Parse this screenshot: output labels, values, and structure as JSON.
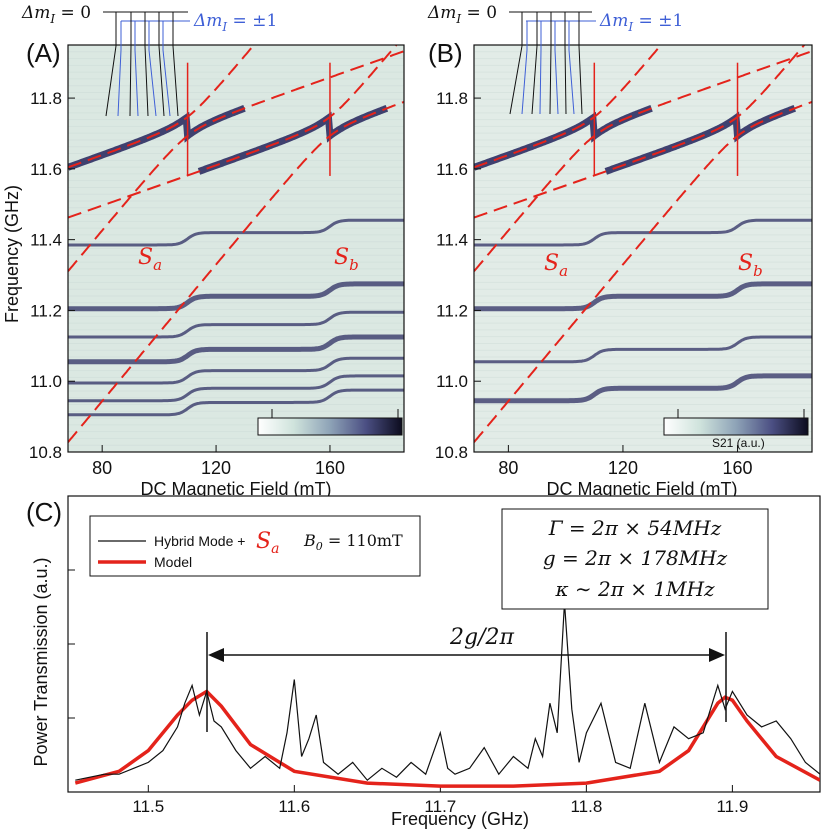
{
  "colors": {
    "red": "#e4231b",
    "blue": "#3e5fd6",
    "navy": "#2e2f63",
    "bg_teal": "#dbe8e2",
    "axis": "#111111"
  },
  "panels": {
    "A": {
      "label": "(A)",
      "xlabel": "DC Magnetic Field (mT)",
      "ylabel": "Frequency (GHz)",
      "xlim": [
        68,
        186
      ],
      "ylim": [
        10.8,
        11.95
      ],
      "xticks": [
        "80",
        "120",
        "160"
      ],
      "yticks": [
        "10.8",
        "11.0",
        "11.2",
        "11.4",
        "11.6",
        "11.8"
      ],
      "sa_label": "S",
      "sa_sub": "a",
      "sb_label": "S",
      "sb_sub": "b",
      "colorbar_label": "",
      "dm0_label": "Δm",
      "dm0_sub": "I",
      "dm0_val": " = 0",
      "dm1_label": "Δm",
      "dm1_sub": "I",
      "dm1_val": " = ±1"
    },
    "B": {
      "label": "(B)",
      "xlabel": "DC Magnetic Field (mT)",
      "xlim": [
        68,
        186
      ],
      "ylim": [
        10.8,
        11.95
      ],
      "xticks": [
        "80",
        "120",
        "160"
      ],
      "yticks": [
        "10.8",
        "11.0",
        "11.2",
        "11.4",
        "11.6",
        "11.8"
      ],
      "sa_label": "S",
      "sa_sub": "a",
      "sb_label": "S",
      "sb_sub": "b",
      "colorbar_label": "S21 (a.u.)",
      "dm0_label": "Δm",
      "dm0_sub": "I",
      "dm0_val": " = 0",
      "dm1_label": "Δm",
      "dm1_sub": "I",
      "dm1_val": " = ±1"
    },
    "C": {
      "label": "(C)",
      "xlabel": "Frequency (GHz)",
      "ylabel": "Power Transmission (a.u.)",
      "legend_data": "Hybrid Mode + ",
      "legend_sa": "S",
      "legend_sa_sub": "a",
      "legend_b0": "B",
      "legend_b0_sub": "0",
      "legend_b0_val": " = 110mT",
      "legend_model": "Model",
      "param_gamma": "Γ = 2π × 54MHz",
      "param_g": "g = 2π × 178MHz",
      "param_kappa": "κ ∼ 2π × 1MHz",
      "gap_label": "2g/2π",
      "xticks": [
        "11.5",
        "11.6",
        "11.7",
        "11.8",
        "11.9"
      ]
    }
  },
  "chart_data": [
    {
      "type": "heatmap",
      "title": "(A)",
      "xlabel": "DC Magnetic Field (mT)",
      "ylabel": "Frequency (GHz)",
      "xlim": [
        68,
        186
      ],
      "ylim": [
        10.8,
        11.95
      ],
      "hybrid_mode_f0": 11.72,
      "avoided_crossings_mT": [
        110,
        160
      ],
      "coupling_GHz": 0.178,
      "lines_GHz": [
        11.42,
        11.24,
        11.16,
        11.09,
        11.03,
        10.98,
        10.94
      ],
      "annotations": [
        "Sa",
        "Sb",
        "Δm_I = 0",
        "Δm_I = ±1"
      ]
    },
    {
      "type": "heatmap",
      "title": "(B)",
      "xlabel": "DC Magnetic Field (mT)",
      "ylabel": "Frequency (GHz)",
      "xlim": [
        68,
        186
      ],
      "ylim": [
        10.8,
        11.95
      ],
      "hybrid_mode_f0": 11.72,
      "avoided_crossings_mT": [
        110,
        160
      ],
      "coupling_GHz": 0.178,
      "lines_GHz": [
        11.42,
        11.24,
        11.09,
        10.98
      ],
      "annotations": [
        "Sa",
        "Sb",
        "S21 (a.u.)"
      ]
    },
    {
      "type": "line",
      "title": "(C)",
      "xlabel": "Frequency (GHz)",
      "ylabel": "Power Transmission (a.u.)",
      "xlim": [
        11.445,
        11.96
      ],
      "ylim": [
        0,
        1
      ],
      "series": [
        {
          "name": "Hybrid Mode + Sa  B0 = 110mT",
          "x": [
            11.45,
            11.46,
            11.47,
            11.48,
            11.49,
            11.5,
            11.51,
            11.52,
            11.525,
            11.53,
            11.535,
            11.54,
            11.545,
            11.55,
            11.56,
            11.57,
            11.58,
            11.59,
            11.595,
            11.6,
            11.605,
            11.61,
            11.615,
            11.62,
            11.63,
            11.64,
            11.65,
            11.66,
            11.67,
            11.68,
            11.69,
            11.7,
            11.705,
            11.71,
            11.72,
            11.73,
            11.74,
            11.75,
            11.76,
            11.765,
            11.77,
            11.775,
            11.78,
            11.785,
            11.79,
            11.795,
            11.8,
            11.81,
            11.82,
            11.83,
            11.84,
            11.85,
            11.86,
            11.87,
            11.88,
            11.89,
            11.895,
            11.9,
            11.91,
            11.92,
            11.93,
            11.94,
            11.95,
            11.96
          ],
          "y": [
            0.04,
            0.05,
            0.06,
            0.06,
            0.08,
            0.1,
            0.14,
            0.22,
            0.3,
            0.36,
            0.26,
            0.34,
            0.24,
            0.22,
            0.14,
            0.08,
            0.12,
            0.08,
            0.2,
            0.38,
            0.12,
            0.18,
            0.26,
            0.1,
            0.06,
            0.1,
            0.04,
            0.08,
            0.05,
            0.1,
            0.06,
            0.2,
            0.08,
            0.06,
            0.08,
            0.15,
            0.06,
            0.12,
            0.08,
            0.18,
            0.12,
            0.3,
            0.2,
            0.64,
            0.28,
            0.1,
            0.2,
            0.3,
            0.1,
            0.08,
            0.3,
            0.1,
            0.22,
            0.18,
            0.2,
            0.36,
            0.28,
            0.34,
            0.26,
            0.22,
            0.24,
            0.18,
            0.1,
            0.06
          ]
        },
        {
          "name": "Model",
          "x": [
            11.45,
            11.48,
            11.5,
            11.52,
            11.53,
            11.54,
            11.55,
            11.57,
            11.6,
            11.65,
            11.7,
            11.75,
            11.8,
            11.85,
            11.87,
            11.88,
            11.89,
            11.895,
            11.9,
            11.91,
            11.93,
            11.96
          ],
          "y": [
            0.03,
            0.07,
            0.14,
            0.26,
            0.31,
            0.34,
            0.29,
            0.16,
            0.07,
            0.03,
            0.02,
            0.02,
            0.03,
            0.07,
            0.14,
            0.22,
            0.3,
            0.32,
            0.31,
            0.24,
            0.12,
            0.04
          ]
        }
      ],
      "annotations": [
        "2g/2π",
        "Γ = 2π × 54MHz",
        "g = 2π × 178MHz",
        "κ ∼ 2π × 1MHz"
      ]
    }
  ]
}
